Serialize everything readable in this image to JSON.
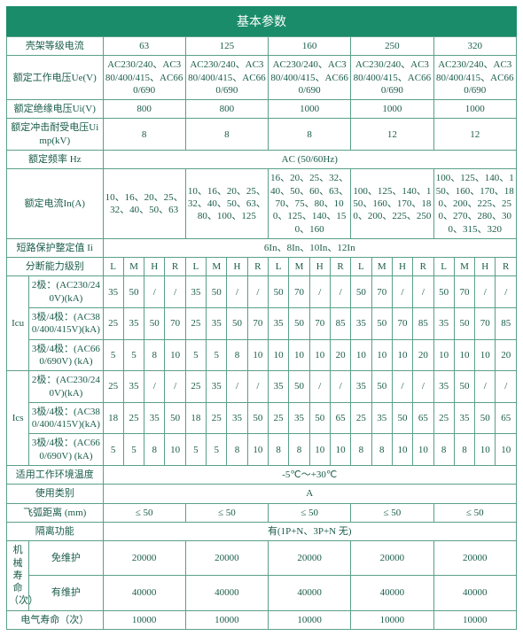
{
  "title": "基本参数",
  "cols": [
    "63",
    "125",
    "160",
    "250",
    "320"
  ],
  "rows": {
    "frameCurrent": "壳架等级电流",
    "ratedVoltage": "额定工作电压Ue(V)",
    "ratedVoltageVal": "AC230/240、AC380/400/415、AC660/690",
    "insVoltage": "额定绝缘电压Ui(V)",
    "insVoltageVals": [
      "800",
      "800",
      "1000",
      "1000",
      "1000"
    ],
    "impulse": "额定冲击耐受电压Uimp(kV)",
    "impulseVals": [
      "8",
      "8",
      "8",
      "12",
      "12"
    ],
    "freq": "额定频率 Hz",
    "freqVal": "AC (50/60Hz)",
    "ratedCurrent": "额定电流In(A)",
    "ratedCurrentVals": [
      "10、16、20、25、32、40、50、63",
      "10、16、20、25、32、40、50、63、80、100、125",
      "16、20、25、32、40、50、60、63、70、75、80、100、125、140、150、160",
      "100、125、140、150、160、170、180、200、225、250",
      "100、125、140、150、160、170、180、200、225、250、270、280、300、315、320"
    ],
    "shortCircuit": "短路保护整定值 Ii",
    "shortCircuitVal": "6In、8In、10In、12In",
    "breakCap": "分断能力级别",
    "lmhr": [
      "L",
      "M",
      "H",
      "R"
    ],
    "icu": "Icu",
    "ics": "Ics",
    "p2_230": "2极：(AC230/240V)(kA)",
    "p34_380": "3极/4极：(AC380/400/415V)(kA)",
    "p34_660": "3极/4极：(AC660/690V)  (kA)",
    "icu_230": [
      "35",
      "50",
      "/",
      "/",
      "35",
      "50",
      "/",
      "/",
      "50",
      "70",
      "/",
      "/",
      "50",
      "70",
      "/",
      "/",
      "50",
      "70",
      "/",
      "/"
    ],
    "icu_380": [
      "25",
      "35",
      "50",
      "70",
      "25",
      "35",
      "50",
      "70",
      "35",
      "50",
      "70",
      "85",
      "35",
      "50",
      "70",
      "85",
      "35",
      "50",
      "70",
      "85"
    ],
    "icu_660": [
      "5",
      "5",
      "8",
      "10",
      "5",
      "5",
      "8",
      "10",
      "10",
      "10",
      "10",
      "20",
      "10",
      "10",
      "10",
      "20",
      "10",
      "10",
      "10",
      "20"
    ],
    "ics_230": [
      "25",
      "35",
      "/",
      "/",
      "25",
      "35",
      "/",
      "/",
      "35",
      "50",
      "/",
      "/",
      "35",
      "50",
      "/",
      "/",
      "35",
      "50",
      "/",
      "/"
    ],
    "ics_380": [
      "18",
      "25",
      "35",
      "50",
      "18",
      "25",
      "35",
      "50",
      "25",
      "35",
      "50",
      "65",
      "25",
      "35",
      "50",
      "65",
      "25",
      "35",
      "50",
      "65"
    ],
    "ics_660": [
      "5",
      "5",
      "8",
      "10",
      "5",
      "5",
      "8",
      "10",
      "8",
      "8",
      "10",
      "10",
      "8",
      "8",
      "10",
      "10",
      "8",
      "8",
      "10",
      "10"
    ],
    "envTemp": "适用工作环境温度",
    "envTempVal": "-5℃～+30℃",
    "useCat": "使用类别",
    "useCatVal": "A",
    "arc": "飞弧距离 (mm)",
    "arcVal": "≤ 50",
    "iso": "隔离功能",
    "isoVal": "有(1P+N、3P+N 无)",
    "mechLife": "机械寿命（次）",
    "noMaint": "免维护",
    "withMaint": "有维护",
    "noMaintVals": [
      "20000",
      "20000",
      "20000",
      "20000",
      "20000"
    ],
    "withMaintVals": [
      "40000",
      "40000",
      "40000",
      "40000",
      "40000"
    ],
    "elecLife": "电气寿命（次）",
    "elecLifeVals": [
      "10000",
      "10000",
      "10000",
      "10000",
      "10000"
    ]
  }
}
